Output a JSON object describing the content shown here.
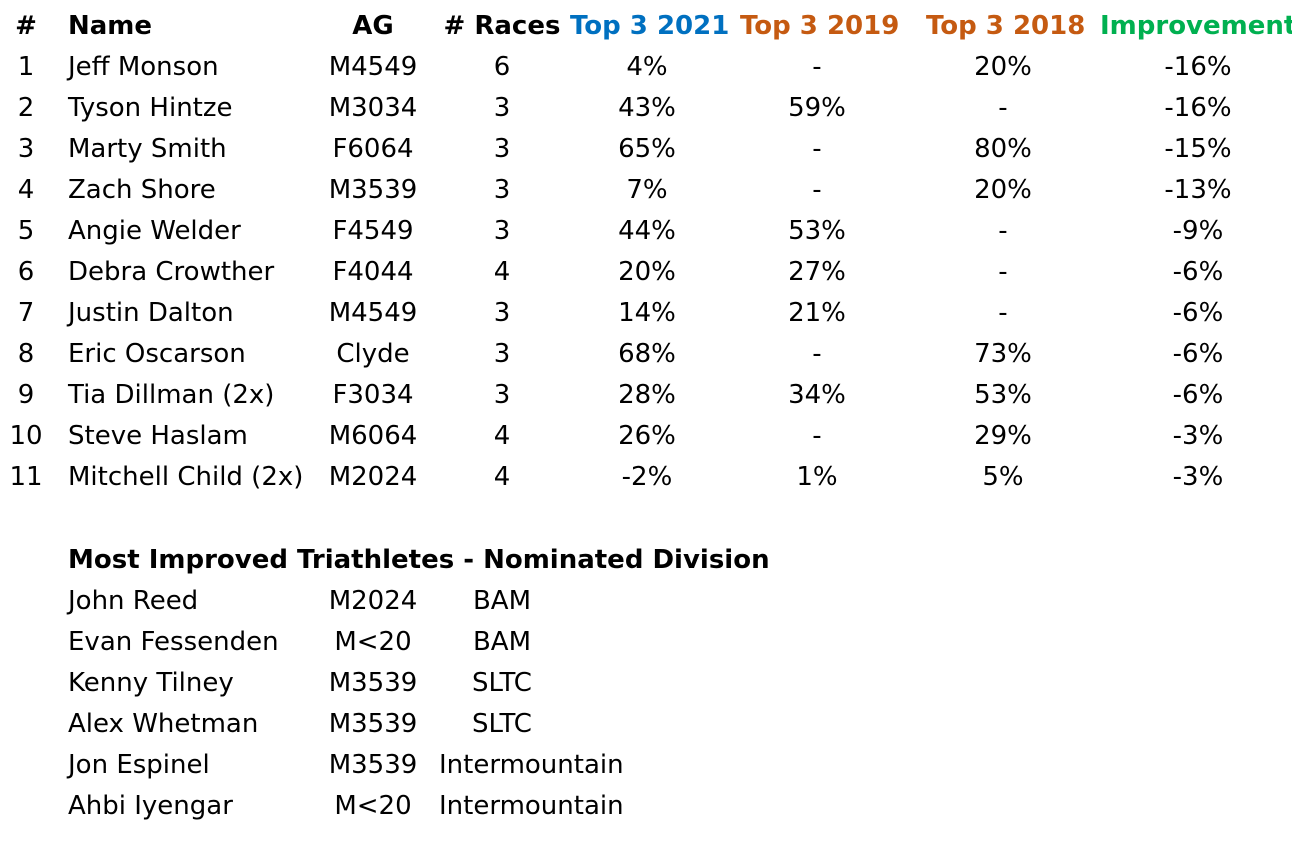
{
  "headers": {
    "num": "#",
    "name": "Name",
    "ag": "AG",
    "races": "# Races",
    "top3_2021": "Top 3 2021",
    "top3_2019": "Top 3 2019",
    "top3_2018": "Top 3 2018",
    "improvement": "Improvement"
  },
  "colors": {
    "top3_2021": "#0070C0",
    "top3_2019": "#C55A11",
    "top3_2018": "#C55A11",
    "improvement": "#00B050",
    "text": "#000000"
  },
  "rows": [
    {
      "num": "1",
      "name": "Jeff Monson",
      "ag": "M4549",
      "races": "6",
      "y2021": "4%",
      "y2019": "-",
      "y2018": "20%",
      "improvement": "-16%"
    },
    {
      "num": "2",
      "name": "Tyson Hintze",
      "ag": "M3034",
      "races": "3",
      "y2021": "43%",
      "y2019": "59%",
      "y2018": "-",
      "improvement": "-16%"
    },
    {
      "num": "3",
      "name": "Marty Smith",
      "ag": "F6064",
      "races": "3",
      "y2021": "65%",
      "y2019": "-",
      "y2018": "80%",
      "improvement": "-15%"
    },
    {
      "num": "4",
      "name": "Zach Shore",
      "ag": "M3539",
      "races": "3",
      "y2021": "7%",
      "y2019": "-",
      "y2018": "20%",
      "improvement": "-13%"
    },
    {
      "num": "5",
      "name": "Angie Welder",
      "ag": "F4549",
      "races": "3",
      "y2021": "44%",
      "y2019": "53%",
      "y2018": "-",
      "improvement": "-9%"
    },
    {
      "num": "6",
      "name": "Debra Crowther",
      "ag": "F4044",
      "races": "4",
      "y2021": "20%",
      "y2019": "27%",
      "y2018": "-",
      "improvement": "-6%"
    },
    {
      "num": "7",
      "name": "Justin Dalton",
      "ag": "M4549",
      "races": "3",
      "y2021": "14%",
      "y2019": "21%",
      "y2018": "-",
      "improvement": "-6%"
    },
    {
      "num": "8",
      "name": "Eric Oscarson",
      "ag": "Clyde",
      "races": "3",
      "y2021": "68%",
      "y2019": "-",
      "y2018": "73%",
      "improvement": "-6%"
    },
    {
      "num": "9",
      "name": "Tia Dillman (2x)",
      "ag": "F3034",
      "races": "3",
      "y2021": "28%",
      "y2019": "34%",
      "y2018": "53%",
      "improvement": "-6%"
    },
    {
      "num": "10",
      "name": "Steve Haslam",
      "ag": "M6064",
      "races": "4",
      "y2021": "26%",
      "y2019": "-",
      "y2018": "29%",
      "improvement": "-3%"
    },
    {
      "num": "11",
      "name": "Mitchell Child (2x)",
      "ag": "M2024",
      "races": "4",
      "y2021": "-2%",
      "y2019": "1%",
      "y2018": "5%",
      "improvement": "-3%"
    }
  ],
  "nominated": {
    "title": "Most Improved Triathletes - Nominated Division",
    "rows": [
      {
        "name": "John Reed",
        "ag": "M2024",
        "division": "BAM"
      },
      {
        "name": "Evan Fessenden",
        "ag": "M<20",
        "division": "BAM"
      },
      {
        "name": "Kenny Tilney",
        "ag": "M3539",
        "division": "SLTC"
      },
      {
        "name": "Alex Whetman",
        "ag": "M3539",
        "division": "SLTC"
      },
      {
        "name": "Jon Espinel",
        "ag": "M3539",
        "division": "Intermountain"
      },
      {
        "name": "Ahbi Iyengar",
        "ag": "M<20",
        "division": "Intermountain"
      }
    ]
  }
}
